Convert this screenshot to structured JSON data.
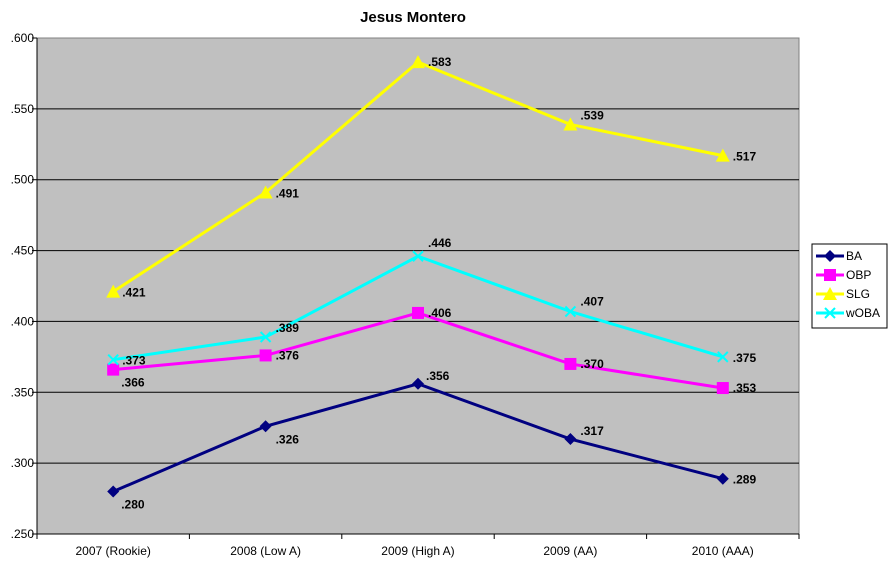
{
  "chart_data": {
    "type": "line",
    "title": "Jesus Montero",
    "categories": [
      "2007 (Rookie)",
      "2008 (Low A)",
      "2009 (High A)",
      "2009 (AA)",
      "2010 (AAA)"
    ],
    "ylim": [
      0.25,
      0.6
    ],
    "yticks": [
      0.25,
      0.3,
      0.35,
      0.4,
      0.45,
      0.5,
      0.55,
      0.6
    ],
    "ytick_labels": [
      ".250",
      ".300",
      ".350",
      ".400",
      ".450",
      ".500",
      ".550",
      ".600"
    ],
    "grid": true,
    "plot_background": "#c0c0c0",
    "legend_position": "right",
    "series": [
      {
        "name": "BA",
        "color": "#000080",
        "marker": "diamond",
        "values": [
          0.28,
          0.326,
          0.356,
          0.317,
          0.289
        ],
        "labels": [
          ".280",
          ".326",
          ".356",
          ".317",
          ".289"
        ]
      },
      {
        "name": "OBP",
        "color": "#ff00ff",
        "marker": "square",
        "values": [
          0.366,
          0.376,
          0.406,
          0.37,
          0.353
        ],
        "labels": [
          ".366",
          ".376",
          ".406",
          ".370",
          ".353"
        ]
      },
      {
        "name": "SLG",
        "color": "#ffff00",
        "marker": "triangle",
        "values": [
          0.421,
          0.491,
          0.583,
          0.539,
          0.517
        ],
        "labels": [
          ".421",
          ".491",
          ".583",
          ".539",
          ".517"
        ]
      },
      {
        "name": "wOBA",
        "color": "#00ffff",
        "marker": "x",
        "values": [
          0.373,
          0.389,
          0.446,
          0.407,
          0.375
        ],
        "labels": [
          ".373",
          ".389",
          ".446",
          ".407",
          ".375"
        ]
      }
    ]
  }
}
